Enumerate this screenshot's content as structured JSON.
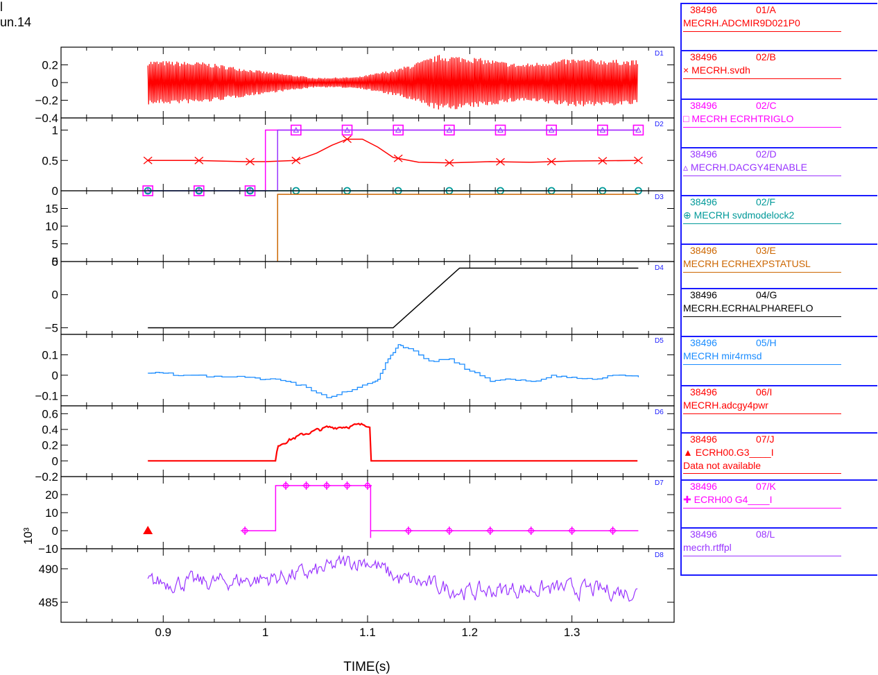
{
  "header": {
    "line1": "l",
    "line2": "un.14"
  },
  "chart_data": {
    "type": "line",
    "xlabel": "TIME(s)",
    "xlim": [
      0.8,
      1.4
    ],
    "xticks": [
      0.9,
      1,
      1.1,
      1.2,
      1.3
    ],
    "xticklabels": [
      "0.9",
      "1",
      "1.1",
      "1.2",
      "1.3"
    ],
    "panels": [
      {
        "id": "D1",
        "ylim": [
          -0.4,
          0.4
        ],
        "yticks": [
          0.2,
          0,
          -0.2,
          -0.4
        ],
        "yticklabels": [
          "0.2",
          "0",
          "−0.2",
          "−0.4"
        ],
        "series": [
          {
            "name": "MECRH.ADCMIR9D021P0",
            "color": "#ff0000",
            "kind": "osc",
            "envelope": [
              [
                0.885,
                0.24
              ],
              [
                0.94,
                0.22
              ],
              [
                1.0,
                0.12
              ],
              [
                1.05,
                0.05
              ],
              [
                1.09,
                0.06
              ],
              [
                1.13,
                0.15
              ],
              [
                1.17,
                0.3
              ],
              [
                1.2,
                0.28
              ],
              [
                1.25,
                0.2
              ],
              [
                1.3,
                0.26
              ],
              [
                1.365,
                0.24
              ]
            ]
          }
        ]
      },
      {
        "id": "D2",
        "ylim": [
          0,
          1.2
        ],
        "yticks": [
          1,
          0.5,
          0
        ],
        "yticklabels": [
          "1",
          "0.5",
          "0"
        ],
        "series": [
          {
            "name": "MECRH.svdh",
            "color": "#ff0000",
            "marker": "x",
            "points": [
              [
                0.885,
                0.5
              ],
              [
                0.93,
                0.5
              ],
              [
                0.98,
                0.48
              ],
              [
                1.0,
                0.48
              ],
              [
                1.03,
                0.5
              ],
              [
                1.05,
                0.62
              ],
              [
                1.065,
                0.75
              ],
              [
                1.08,
                0.85
              ],
              [
                1.095,
                0.85
              ],
              [
                1.11,
                0.72
              ],
              [
                1.125,
                0.55
              ],
              [
                1.15,
                0.47
              ],
              [
                1.18,
                0.46
              ],
              [
                1.22,
                0.48
              ],
              [
                1.26,
                0.47
              ],
              [
                1.3,
                0.49
              ],
              [
                1.365,
                0.5
              ]
            ],
            "marks": [
              0.885,
              0.935,
              0.985,
              1.03,
              1.08,
              1.13,
              1.18,
              1.23,
              1.28,
              1.33,
              1.365
            ]
          },
          {
            "name": "MECRH ECRHTRIGLO",
            "color": "#ff00ff",
            "marker": "square",
            "points": [
              [
                0.885,
                0
              ],
              [
                1.0,
                0
              ],
              [
                1.0,
                1
              ],
              [
                1.365,
                1
              ]
            ],
            "marks": [
              0.885,
              0.935,
              0.985,
              1.03,
              1.08,
              1.13,
              1.18,
              1.23,
              1.28,
              1.33,
              1.365
            ]
          },
          {
            "name": "MECRH.DACGY4ENABLE",
            "color": "#9933ff",
            "marker": "triangle",
            "points": [
              [
                0.885,
                0
              ],
              [
                1.012,
                0
              ],
              [
                1.012,
                1
              ],
              [
                1.365,
                1
              ]
            ],
            "marks": [
              0.885,
              0.935,
              0.985,
              1.03,
              1.08,
              1.13,
              1.18,
              1.23,
              1.28,
              1.33,
              1.365
            ]
          },
          {
            "name": "MECRH svdmodelock2",
            "color": "#009999",
            "marker": "circle",
            "points": [
              [
                0.885,
                0
              ],
              [
                1.365,
                0
              ]
            ],
            "marks": [
              0.885,
              0.935,
              0.985,
              1.03,
              1.08,
              1.13,
              1.18,
              1.23,
              1.28,
              1.33,
              1.365
            ]
          }
        ]
      },
      {
        "id": "D3",
        "ylim": [
          0,
          20
        ],
        "yticks": [
          15,
          10,
          5,
          0
        ],
        "yticklabels": [
          "15",
          "10",
          "5",
          "0"
        ],
        "series": [
          {
            "name": "MECRH ECRHEXPSTATUSL",
            "color": "#cc6600",
            "points": [
              [
                1.012,
                0
              ],
              [
                1.012,
                19
              ],
              [
                1.365,
                19
              ]
            ]
          }
        ]
      },
      {
        "id": "D4",
        "ylim": [
          -6,
          5
        ],
        "yticks": [
          5,
          0,
          -5
        ],
        "yticklabels": [
          "5",
          "0",
          "−5"
        ],
        "series": [
          {
            "name": "MECRH.ECRHALPHAREFLO",
            "color": "#000000",
            "points": [
              [
                0.885,
                -5
              ],
              [
                1.125,
                -5
              ],
              [
                1.19,
                4
              ],
              [
                1.365,
                4
              ]
            ]
          }
        ]
      },
      {
        "id": "D5",
        "ylim": [
          -0.15,
          0.2
        ],
        "yticks": [
          0.1,
          0,
          -0.1
        ],
        "yticklabels": [
          "0.1",
          "0",
          "−0.1"
        ],
        "series": [
          {
            "name": "MECRH mir4rmsd",
            "color": "#1a8cff",
            "kind": "stairs",
            "points": [
              [
                0.885,
                0.01
              ],
              [
                0.9,
                0.01
              ],
              [
                0.92,
                0.0
              ],
              [
                0.95,
                -0.005
              ],
              [
                0.98,
                -0.01
              ],
              [
                1.0,
                -0.02
              ],
              [
                1.02,
                -0.03
              ],
              [
                1.04,
                -0.06
              ],
              [
                1.06,
                -0.11
              ],
              [
                1.08,
                -0.08
              ],
              [
                1.1,
                -0.04
              ],
              [
                1.11,
                -0.02
              ],
              [
                1.12,
                0.08
              ],
              [
                1.13,
                0.15
              ],
              [
                1.14,
                0.13
              ],
              [
                1.16,
                0.07
              ],
              [
                1.18,
                0.08
              ],
              [
                1.2,
                0.02
              ],
              [
                1.22,
                -0.03
              ],
              [
                1.24,
                -0.02
              ],
              [
                1.26,
                -0.03
              ],
              [
                1.28,
                0.0
              ],
              [
                1.3,
                -0.01
              ],
              [
                1.32,
                -0.02
              ],
              [
                1.34,
                0.0
              ],
              [
                1.365,
                -0.01
              ]
            ]
          }
        ]
      },
      {
        "id": "D6",
        "ylim": [
          -0.2,
          0.7
        ],
        "yticks": [
          0.6,
          0.4,
          0.2,
          0,
          -0.2
        ],
        "yticklabels": [
          "0.6",
          "0.4",
          "0.2",
          "0",
          "−0.2"
        ],
        "series": [
          {
            "name": "MECRH.adcgy4pwr",
            "color": "#ff0000",
            "kind": "noisy",
            "points": [
              [
                0.885,
                0.0
              ],
              [
                1.01,
                0.0
              ],
              [
                1.012,
                0.2
              ],
              [
                1.02,
                0.25
              ],
              [
                1.04,
                0.35
              ],
              [
                1.06,
                0.42
              ],
              [
                1.08,
                0.44
              ],
              [
                1.1,
                0.46
              ],
              [
                1.103,
                0.46
              ],
              [
                1.103,
                0.0
              ],
              [
                1.365,
                0.0
              ]
            ]
          }
        ]
      },
      {
        "id": "D7",
        "ylim": [
          -10,
          30
        ],
        "yticks": [
          20,
          10,
          0,
          -10
        ],
        "yticklabels": [
          "20",
          "10",
          "0",
          "−10"
        ],
        "scale": "10³",
        "series": [
          {
            "name": "ECRH00.G3",
            "color": "#ff0000",
            "marker": "filled-triangle",
            "points": [],
            "marks": [
              0.885
            ],
            "markvalue": 0
          },
          {
            "name": "ECRH00.G4",
            "color": "#ff00ff",
            "marker": "plus-circle",
            "points": [
              [
                0.98,
                0
              ],
              [
                1.01,
                0
              ],
              [
                1.01,
                25
              ],
              [
                1.103,
                25
              ],
              [
                1.103,
                -4
              ],
              [
                1.103,
                0
              ],
              [
                1.365,
                0
              ]
            ],
            "marks": [
              0.98,
              1.02,
              1.04,
              1.06,
              1.08,
              1.1,
              1.14,
              1.18,
              1.22,
              1.26,
              1.3,
              1.34
            ]
          }
        ]
      },
      {
        "id": "D8",
        "ylim": [
          482,
          493
        ],
        "yticks": [
          490,
          485
        ],
        "yticklabels": [
          "490",
          "485"
        ],
        "series": [
          {
            "name": "mecrh.rtffpl",
            "color": "#9933ff",
            "kind": "noisy",
            "points": [
              [
                0.885,
                488
              ],
              [
                0.95,
                488
              ],
              [
                1.0,
                488.5
              ],
              [
                1.05,
                489.5
              ],
              [
                1.08,
                491
              ],
              [
                1.1,
                491.2
              ],
              [
                1.13,
                488.5
              ],
              [
                1.2,
                486.5
              ],
              [
                1.25,
                487
              ],
              [
                1.3,
                487
              ],
              [
                1.365,
                486.5
              ]
            ]
          }
        ]
      }
    ]
  },
  "legend": [
    {
      "shot": "38496",
      "code": "01/A",
      "label": "MECRH.ADCMIR9D021P0",
      "symbol": "",
      "color": "#ff0000",
      "headcolor": "#ff0000",
      "sub": ""
    },
    {
      "shot": "38496",
      "code": "02/B",
      "label": "MECRH.svdh",
      "symbol": "×",
      "color": "#ff0000",
      "headcolor": "#ff0000",
      "sub": ""
    },
    {
      "shot": "38496",
      "code": "02/C",
      "label": "MECRH ECRHTRIGLO",
      "symbol": "□",
      "color": "#ff00ff",
      "headcolor": "#ff00ff",
      "sub": ""
    },
    {
      "shot": "38496",
      "code": "02/D",
      "label": "MECRH.DACGY4ENABLE",
      "symbol": "▵",
      "color": "#9933ff",
      "headcolor": "#9933ff",
      "sub": ""
    },
    {
      "shot": "38496",
      "code": "02/F",
      "label": "MECRH svdmodelock2",
      "symbol": "⊕",
      "color": "#009999",
      "headcolor": "#009999",
      "sub": ""
    },
    {
      "shot": "38496",
      "code": "03/E",
      "label": "MECRH ECRHEXPSTATUSL",
      "symbol": "",
      "color": "#cc6600",
      "headcolor": "#cc6600",
      "sub": ""
    },
    {
      "shot": "38496",
      "code": "04/G",
      "label": "MECRH.ECRHALPHAREFLO",
      "symbol": "",
      "color": "#000000",
      "headcolor": "#000000",
      "sub": ""
    },
    {
      "shot": "38496",
      "code": "05/H",
      "label": "MECRH mir4rmsd",
      "symbol": "",
      "color": "#1a8cff",
      "headcolor": "#1a8cff",
      "sub": ""
    },
    {
      "shot": "38496",
      "code": "06/I",
      "label": "MECRH.adcgy4pwr",
      "symbol": "",
      "color": "#ff0000",
      "headcolor": "#ff0000",
      "sub": ""
    },
    {
      "shot": "38496",
      "code": "07/J",
      "label": "ECRH00.G3____I",
      "symbol": "▲",
      "color": "#ff0000",
      "headcolor": "#ff0000",
      "sub": "Data not available"
    },
    {
      "shot": "38496",
      "code": "07/K",
      "label": "ECRH00 G4____I",
      "symbol": "✚",
      "color": "#ff00ff",
      "headcolor": "#ff00ff",
      "sub": ""
    },
    {
      "shot": "38496",
      "code": "08/L",
      "label": "mecrh.rtffpl",
      "symbol": "",
      "color": "#9933ff",
      "headcolor": "#9933ff",
      "sub": ""
    }
  ]
}
